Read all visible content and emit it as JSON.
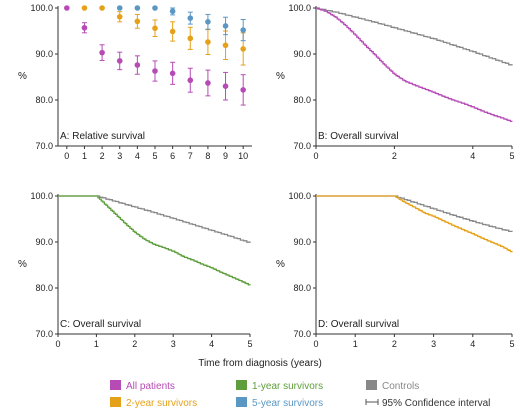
{
  "colors": {
    "all_patients": "#b64bb6",
    "two_year": "#e6a11a",
    "five_year": "#5b97c3",
    "one_year": "#5f9e3c",
    "controls": "#888888",
    "ci": "#555555"
  },
  "x_axis_title": "Time from diagnosis (years)",
  "legend": [
    {
      "key": "all_patients",
      "label": "All patients",
      "kind": "box"
    },
    {
      "key": "one_year",
      "label": "1-year survivors",
      "kind": "box"
    },
    {
      "key": "controls",
      "label": "Controls",
      "kind": "box"
    },
    {
      "key": "two_year",
      "label": "2-year survivors",
      "kind": "box"
    },
    {
      "key": "five_year",
      "label": "5-year survivors",
      "kind": "box"
    },
    {
      "key": "ci",
      "label": "95% Confidence interval",
      "kind": "ci"
    }
  ],
  "chart_data": [
    {
      "id": "A",
      "type": "scatter",
      "title": "A: Relative survival",
      "ylabel": "%",
      "xlim": [
        -0.5,
        10.5
      ],
      "ylim": [
        70,
        100
      ],
      "xticks": [
        0,
        1,
        2,
        3,
        4,
        5,
        6,
        7,
        8,
        9,
        10
      ],
      "yticks": [
        70.0,
        80.0,
        90.0,
        100.0
      ],
      "series": [
        {
          "key": "all_patients",
          "name": "All patients",
          "x": [
            0,
            1,
            2,
            3,
            4,
            5,
            6,
            7,
            8,
            9,
            10
          ],
          "y": [
            100.0,
            95.7,
            90.3,
            88.5,
            87.6,
            86.3,
            85.8,
            84.3,
            83.7,
            83.0,
            82.2
          ],
          "lo": [
            100.0,
            94.6,
            88.6,
            86.6,
            85.6,
            84.1,
            83.4,
            81.7,
            80.9,
            80.0,
            78.9
          ],
          "hi": [
            100.0,
            96.8,
            92.0,
            90.4,
            89.6,
            88.5,
            88.2,
            86.9,
            86.5,
            86.0,
            85.5
          ]
        },
        {
          "key": "two_year",
          "name": "2-year survivors",
          "x": [
            1,
            2,
            3,
            4,
            5,
            6,
            7,
            8,
            9,
            10
          ],
          "y": [
            100.0,
            100.0,
            98.1,
            97.1,
            95.6,
            94.9,
            93.4,
            92.6,
            91.9,
            91.1
          ],
          "lo": [
            100.0,
            100.0,
            97.0,
            95.6,
            93.8,
            92.8,
            91.0,
            89.9,
            88.8,
            87.6
          ],
          "hi": [
            100.0,
            100.0,
            99.2,
            98.6,
            97.4,
            97.0,
            95.8,
            95.3,
            95.0,
            94.6
          ]
        },
        {
          "key": "five_year",
          "name": "5-year survivors",
          "x": [
            3,
            4,
            5,
            6,
            7,
            8,
            9,
            10
          ],
          "y": [
            100.0,
            100.0,
            100.0,
            99.3,
            97.8,
            97.0,
            96.1,
            95.2
          ],
          "lo": [
            100.0,
            100.0,
            100.0,
            98.5,
            96.5,
            95.4,
            94.2,
            92.9
          ],
          "hi": [
            100.0,
            100.0,
            100.0,
            100.0,
            99.1,
            98.6,
            98.0,
            97.5
          ]
        }
      ]
    },
    {
      "id": "B",
      "type": "line",
      "title": "B: Overall survival",
      "ylabel": "%",
      "xlim": [
        0,
        5
      ],
      "ylim": [
        70,
        100
      ],
      "xticks": [
        0,
        2,
        4,
        5
      ],
      "yticks": [
        70.0,
        80.0,
        90.0,
        100.0
      ],
      "series": [
        {
          "key": "controls",
          "name": "Controls",
          "x": [
            0,
            0.5,
            1,
            1.5,
            2,
            2.5,
            3,
            3.5,
            4,
            4.5,
            5
          ],
          "y": [
            100.0,
            99.1,
            98.0,
            96.9,
            95.7,
            94.5,
            93.3,
            91.9,
            90.5,
            89.0,
            87.5
          ]
        },
        {
          "key": "all_patients",
          "name": "All patients",
          "x": [
            0,
            0.25,
            0.5,
            0.75,
            1,
            1.25,
            1.5,
            1.75,
            2,
            2.25,
            2.5,
            2.75,
            3,
            3.25,
            3.5,
            3.75,
            4,
            4.25,
            4.5,
            4.75,
            5
          ],
          "y": [
            100.0,
            99.3,
            98.0,
            96.2,
            94.1,
            91.9,
            89.8,
            87.6,
            85.6,
            84.2,
            83.3,
            82.5,
            81.7,
            80.8,
            80.0,
            79.3,
            78.5,
            77.6,
            76.8,
            76.1,
            75.3
          ]
        }
      ]
    },
    {
      "id": "C",
      "type": "line",
      "title": "C: Overall survival",
      "ylabel": "%",
      "xlim": [
        0,
        5
      ],
      "ylim": [
        70,
        100
      ],
      "xticks": [
        0,
        1,
        2,
        3,
        4,
        5
      ],
      "yticks": [
        70.0,
        80.0,
        90.0,
        100.0
      ],
      "series": [
        {
          "key": "controls",
          "name": "Controls",
          "x": [
            0,
            1,
            1.5,
            2,
            2.5,
            3,
            3.5,
            4,
            4.5,
            5
          ],
          "y": [
            100.0,
            100.0,
            98.8,
            97.6,
            96.4,
            95.1,
            93.8,
            92.5,
            91.2,
            89.8
          ]
        },
        {
          "key": "one_year",
          "name": "1-year survivors",
          "x": [
            0,
            1,
            1.25,
            1.5,
            1.75,
            2,
            2.25,
            2.5,
            2.75,
            3,
            3.25,
            3.5,
            3.75,
            4,
            4.25,
            4.5,
            4.75,
            5
          ],
          "y": [
            100.0,
            100.0,
            98.0,
            96.0,
            94.0,
            92.1,
            90.6,
            89.5,
            88.8,
            88.0,
            86.9,
            86.1,
            85.2,
            84.4,
            83.4,
            82.5,
            81.6,
            80.6
          ]
        }
      ]
    },
    {
      "id": "D",
      "type": "line",
      "title": "D: Overall survival",
      "ylabel": "%",
      "xlim": [
        0,
        5
      ],
      "ylim": [
        70,
        100
      ],
      "xticks": [
        0,
        1,
        2,
        3,
        4,
        5
      ],
      "yticks": [
        70.0,
        80.0,
        90.0,
        100.0
      ],
      "series": [
        {
          "key": "controls",
          "name": "Controls",
          "x": [
            0,
            2,
            2.5,
            3,
            3.5,
            4,
            4.5,
            5
          ],
          "y": [
            100.0,
            100.0,
            98.6,
            97.2,
            95.8,
            94.5,
            93.3,
            92.2
          ]
        },
        {
          "key": "two_year",
          "name": "2-year survivors",
          "x": [
            0,
            2,
            2.25,
            2.5,
            2.75,
            3,
            3.25,
            3.5,
            3.75,
            4,
            4.25,
            4.5,
            4.75,
            5
          ],
          "y": [
            100.0,
            100.0,
            98.7,
            97.6,
            96.4,
            95.6,
            94.6,
            93.6,
            92.7,
            91.8,
            90.8,
            89.9,
            89.0,
            87.8
          ]
        }
      ]
    }
  ]
}
